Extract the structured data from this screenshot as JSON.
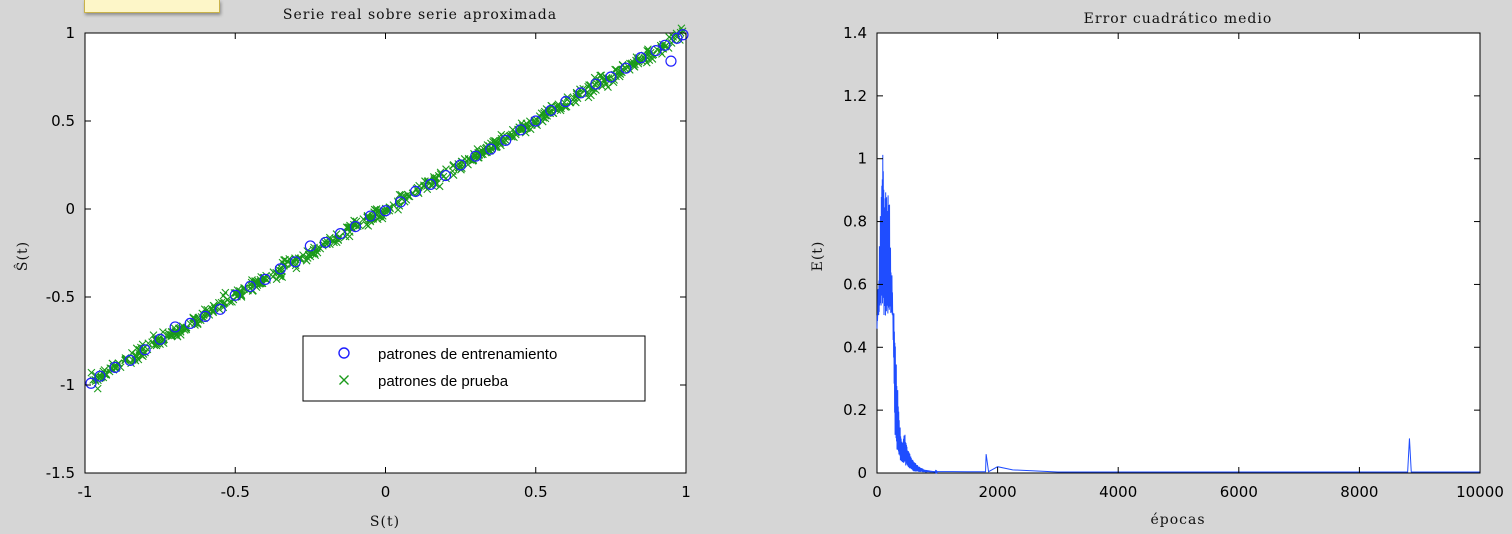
{
  "chart_data": [
    {
      "type": "scatter",
      "title": "Serie real sobre serie aproximada",
      "xlabel": "S(t)",
      "ylabel": "Ŝ(t)",
      "xlim": [
        -1,
        1
      ],
      "ylim": [
        -1.5,
        1
      ],
      "xticks": [
        -1,
        -0.5,
        0,
        0.5,
        1
      ],
      "yticks": [
        -1.5,
        -1,
        -0.5,
        0,
        0.5,
        1
      ],
      "xtick_labels": [
        "-1",
        "-0.5",
        "0",
        "0.5",
        "1"
      ],
      "ytick_labels": [
        "-1.5",
        "-1",
        "-0.5",
        "0",
        "0.5",
        "1"
      ],
      "grid": false,
      "legend_position": "lower-right",
      "series": [
        {
          "name": "patrones de entrenamiento",
          "marker": "circle",
          "color": "#1f1fff",
          "x": [
            -0.98,
            -0.95,
            -0.9,
            -0.85,
            -0.8,
            -0.75,
            -0.7,
            -0.65,
            -0.6,
            -0.55,
            -0.5,
            -0.45,
            -0.4,
            -0.35,
            -0.3,
            -0.25,
            -0.2,
            -0.15,
            -0.1,
            -0.05,
            0.0,
            0.05,
            0.1,
            0.15,
            0.2,
            0.25,
            0.3,
            0.35,
            0.4,
            0.45,
            0.5,
            0.55,
            0.6,
            0.65,
            0.7,
            0.75,
            0.8,
            0.85,
            0.9,
            0.93,
            0.95,
            0.97,
            0.99
          ],
          "y": [
            -0.99,
            -0.95,
            -0.9,
            -0.86,
            -0.8,
            -0.74,
            -0.67,
            -0.65,
            -0.61,
            -0.57,
            -0.49,
            -0.44,
            -0.4,
            -0.34,
            -0.3,
            -0.21,
            -0.19,
            -0.14,
            -0.1,
            -0.04,
            -0.01,
            0.04,
            0.1,
            0.14,
            0.19,
            0.25,
            0.3,
            0.34,
            0.39,
            0.45,
            0.5,
            0.56,
            0.61,
            0.66,
            0.71,
            0.75,
            0.8,
            0.86,
            0.9,
            0.93,
            0.84,
            0.97,
            0.99
          ]
        },
        {
          "name": "patrones de prueba",
          "marker": "x",
          "color": "#1a9a1a",
          "x_range": [
            -0.98,
            0.99
          ],
          "relation": "y ≈ x",
          "count": 600
        }
      ]
    },
    {
      "type": "line",
      "title": "Error cuadrático medio",
      "xlabel": "épocas",
      "ylabel": "E(t)",
      "xlim": [
        0,
        10000
      ],
      "ylim": [
        0,
        1.4
      ],
      "xticks": [
        0,
        2000,
        4000,
        6000,
        8000,
        10000
      ],
      "yticks": [
        0,
        0.2,
        0.4,
        0.6,
        0.8,
        1,
        1.2,
        1.4
      ],
      "xtick_labels": [
        "0",
        "2000",
        "4000",
        "6000",
        "8000",
        "10000"
      ],
      "ytick_labels": [
        "0",
        "0.2",
        "0.4",
        "0.6",
        "0.8",
        "1",
        "1.2",
        "1.4"
      ],
      "grid": false,
      "series": [
        {
          "color": "#1f4dff",
          "x": [
            0,
            60,
            80,
            120,
            160,
            200,
            230,
            260,
            290,
            320,
            350,
            380,
            420,
            460,
            500,
            550,
            600,
            700,
            800,
            1000,
            1500,
            1800,
            1810,
            1850,
            2000,
            2250,
            3000,
            5000,
            8000,
            8800,
            8830,
            8860,
            9000,
            10000
          ],
          "y": [
            0.5,
            0.85,
            1.06,
            0.95,
            0.92,
            0.92,
            0.75,
            0.55,
            0.5,
            0.35,
            0.25,
            0.15,
            0.1,
            0.13,
            0.08,
            0.06,
            0.04,
            0.02,
            0.01,
            0.005,
            0.004,
            0.004,
            0.06,
            0.004,
            0.02,
            0.01,
            0.003,
            0.003,
            0.003,
            0.003,
            0.11,
            0.003,
            0.003,
            0.003
          ],
          "envelope_low": [
            [
              0,
              0.5
            ],
            [
              120,
              0.5
            ],
            [
              200,
              0.5
            ],
            [
              260,
              0.5
            ],
            [
              300,
              0.1
            ],
            [
              350,
              0.05
            ],
            [
              420,
              0.03
            ],
            [
              600,
              0.005
            ],
            [
              800,
              0.002
            ]
          ]
        }
      ]
    }
  ]
}
